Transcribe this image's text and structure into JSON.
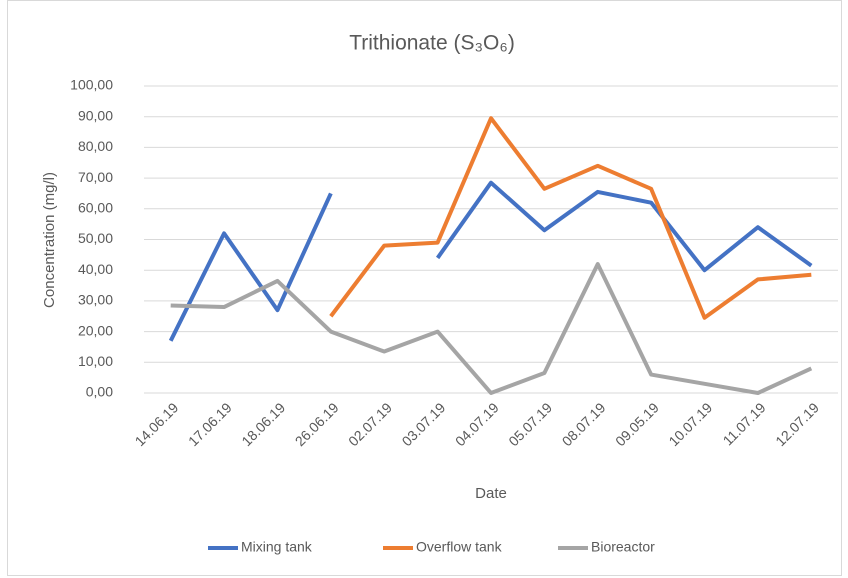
{
  "chart_data": {
    "type": "line",
    "title": "Trithionate (S₃O₆)",
    "x_label": "Date",
    "y_label": "Concentration (mg/l)",
    "categories": [
      "14.06.19",
      "17.06.19",
      "18.06.19",
      "26.06.19",
      "02.07.19",
      "03.07.19",
      "04.07.19",
      "05.07.19",
      "08.07.19",
      "09.05.19",
      "10.07.19",
      "11.07.19",
      "12.07.19"
    ],
    "series": [
      {
        "name": "Mixing tank",
        "color": "#4472c4",
        "values": [
          17,
          52,
          27,
          65,
          null,
          44,
          68.5,
          53,
          65.5,
          62,
          40,
          54,
          41.5
        ]
      },
      {
        "name": "Overflow tank",
        "color": "#ed7d31",
        "values": [
          null,
          null,
          null,
          25,
          48,
          49,
          89.5,
          66.5,
          74,
          66.5,
          24.5,
          37,
          38.5
        ]
      },
      {
        "name": "Bioreactor",
        "color": "#a5a5a5",
        "values": [
          28.5,
          28,
          36.5,
          20,
          13.5,
          20,
          0,
          6.5,
          42,
          6,
          3,
          0,
          8
        ]
      }
    ],
    "ylim": [
      0,
      100
    ],
    "yticks": [
      {
        "value": 0,
        "label": "0,00"
      },
      {
        "value": 10,
        "label": "10,00"
      },
      {
        "value": 20,
        "label": "20,00"
      },
      {
        "value": 30,
        "label": "30,00"
      },
      {
        "value": 40,
        "label": "40,00"
      },
      {
        "value": 50,
        "label": "50,00"
      },
      {
        "value": 60,
        "label": "60,00"
      },
      {
        "value": 70,
        "label": "70,00"
      },
      {
        "value": 80,
        "label": "80,00"
      },
      {
        "value": 90,
        "label": "90,00"
      },
      {
        "value": 100,
        "label": "100,00"
      }
    ],
    "grid": true,
    "legend": "bottom"
  }
}
